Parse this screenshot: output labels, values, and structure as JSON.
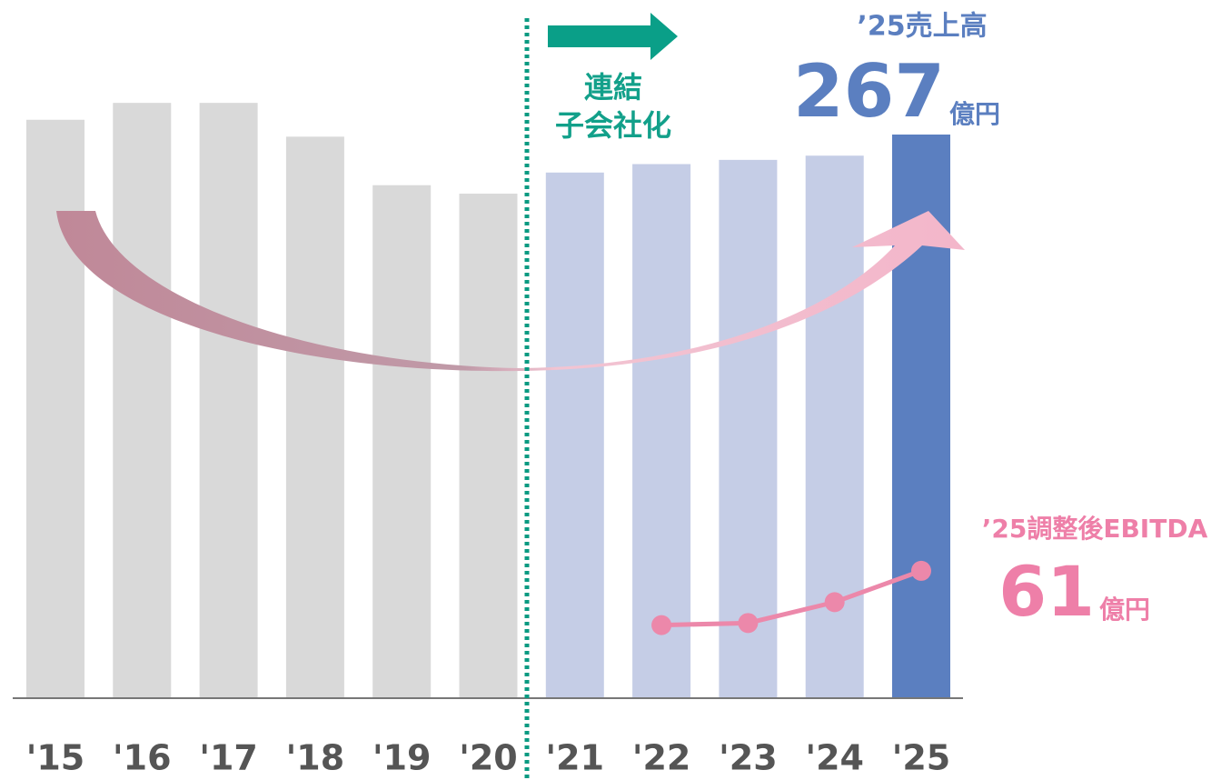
{
  "chart_data": {
    "type": "bar",
    "categories": [
      "'15",
      "'16",
      "'17",
      "'18",
      "'19",
      "'20",
      "'21",
      "'22",
      "'23",
      "'24",
      "'25"
    ],
    "series": [
      {
        "type": "bar",
        "values": [
          274,
          282,
          282,
          266,
          243,
          239,
          249,
          253,
          255,
          257,
          267
        ],
        "colors": [
          "#d9d9d9",
          "#d9d9d9",
          "#d9d9d9",
          "#d9d9d9",
          "#d9d9d9",
          "#d9d9d9",
          "#c5cde6",
          "#c5cde6",
          "#c5cde6",
          "#c5cde6",
          "#5b7fc0"
        ]
      },
      {
        "type": "line",
        "axis": "y2",
        "color": "#ec88aa",
        "values": [
          null,
          null,
          null,
          null,
          null,
          null,
          null,
          35,
          36,
          46,
          61
        ]
      }
    ],
    "ylim": [
      0,
      267
    ],
    "y2lim": [
      0,
      270
    ],
    "annotations": {
      "revenue_title": "’25売上高",
      "revenue_unit": "億円",
      "consolidation": [
        "連結",
        "子会社化"
      ],
      "ebitda_title": "’25調整後EBITDA",
      "ebitda_unit": "億円"
    }
  }
}
